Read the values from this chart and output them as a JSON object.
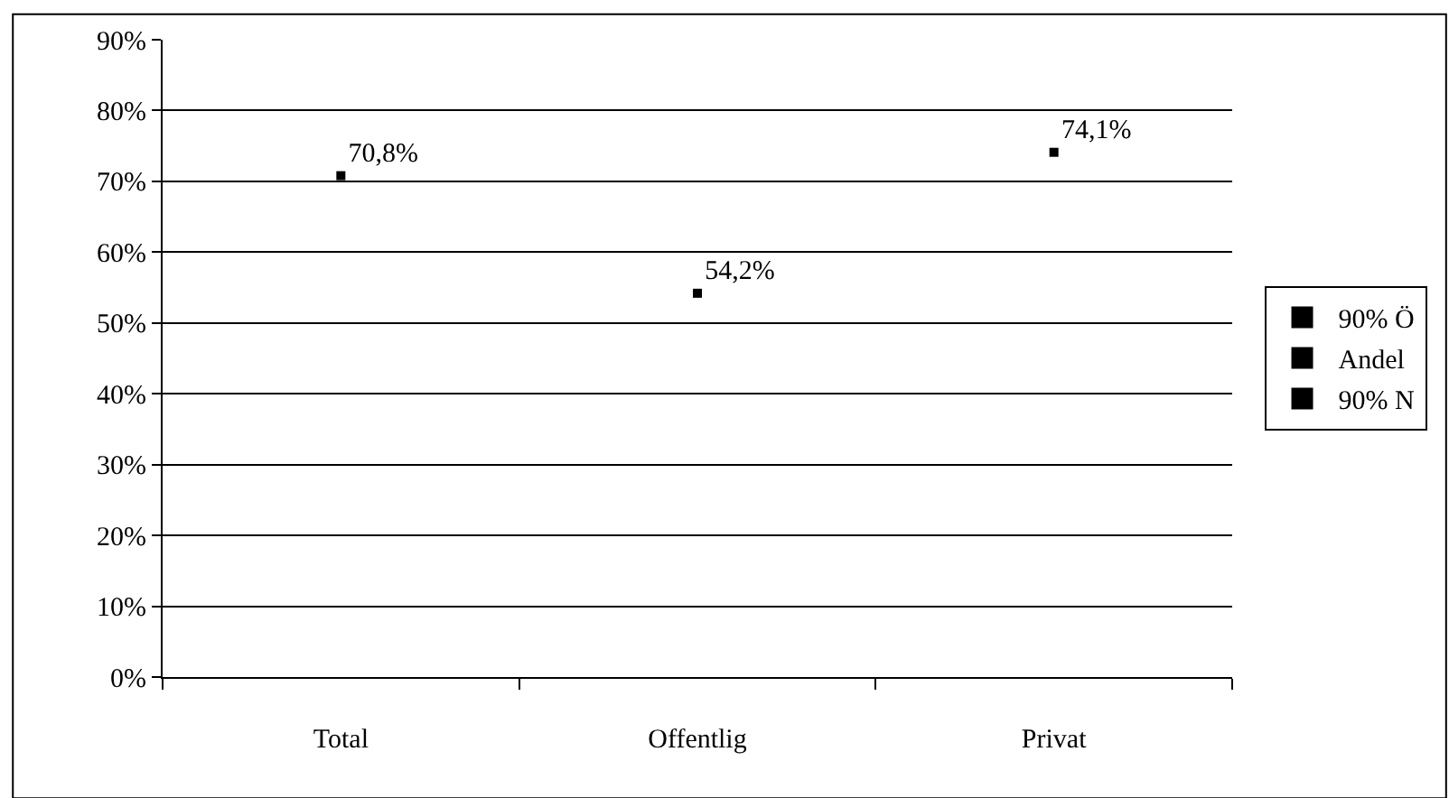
{
  "chart_data": {
    "type": "scatter",
    "categories": [
      "Total",
      "Offentlig",
      "Privat"
    ],
    "series": [
      {
        "name": "90% Ö",
        "color": "#000000",
        "values": [
          null,
          null,
          null
        ]
      },
      {
        "name": "Andel",
        "color": "#000000",
        "values": [
          70.8,
          54.2,
          74.1
        ],
        "value_labels": [
          "70,8%",
          "54,2%",
          "74,1%"
        ]
      },
      {
        "name": "90% N",
        "color": "#000000",
        "values": [
          null,
          null,
          null
        ]
      }
    ],
    "ylim": [
      0,
      90
    ],
    "yticks": [
      {
        "value": 0,
        "label": "0%"
      },
      {
        "value": 10,
        "label": "10%"
      },
      {
        "value": 20,
        "label": "20%"
      },
      {
        "value": 30,
        "label": "30%"
      },
      {
        "value": 40,
        "label": "40%"
      },
      {
        "value": 50,
        "label": "50%"
      },
      {
        "value": 60,
        "label": "60%"
      },
      {
        "value": 70,
        "label": "70%"
      },
      {
        "value": 80,
        "label": "80%"
      },
      {
        "value": 90,
        "label": "90%"
      }
    ],
    "grid": "y",
    "legend": "right",
    "marker": "square"
  }
}
